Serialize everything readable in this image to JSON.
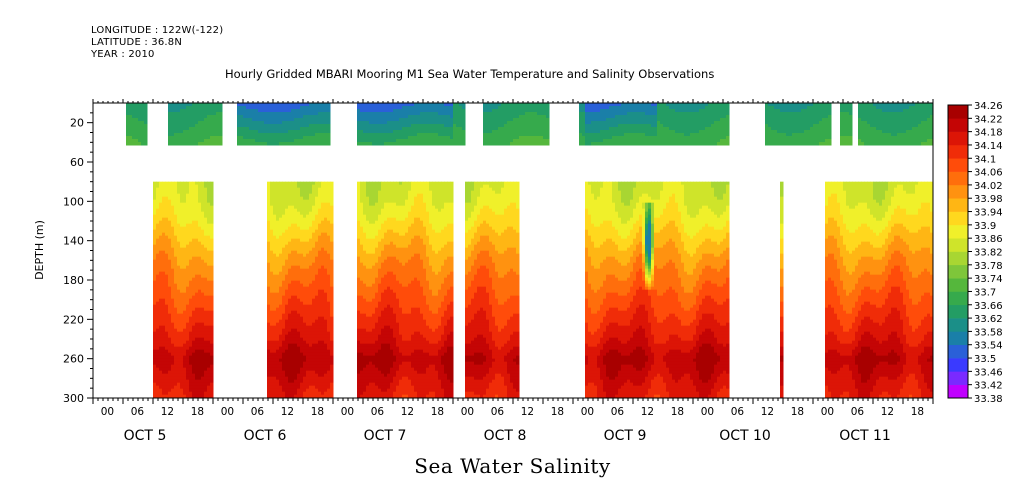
{
  "header": {
    "longitude": "LONGITUDE : 122W(-122)",
    "latitude": "LATITUDE : 36.8N",
    "year": "YEAR : 2010"
  },
  "chart_data": {
    "type": "heatmap",
    "title": "Hourly Gridded MBARI Mooring M1 Sea Water Temperature and Salinity Observations",
    "variable_label": "Sea Water Salinity",
    "ylabel": "DEPTH (m)",
    "xlabel": "",
    "ylim": [
      300,
      0
    ],
    "y_ticks": [
      20,
      60,
      100,
      140,
      180,
      220,
      260,
      300
    ],
    "x_hour_ticks": [
      "00",
      "06",
      "12",
      "18",
      "00",
      "06",
      "12",
      "18",
      "00",
      "06",
      "12",
      "18",
      "00",
      "06",
      "12",
      "18",
      "00",
      "06",
      "12",
      "18",
      "00",
      "06",
      "12",
      "18",
      "00",
      "06",
      "12",
      "18"
    ],
    "x_day_labels": [
      "OCT  5",
      "OCT  6",
      "OCT  7",
      "OCT  8",
      "OCT  9",
      "OCT 10",
      "OCT 11"
    ],
    "x_range_days": [
      0,
      7
    ],
    "colorbar": {
      "levels": [
        33.38,
        33.42,
        33.46,
        33.5,
        33.54,
        33.58,
        33.62,
        33.66,
        33.7,
        33.74,
        33.78,
        33.82,
        33.86,
        33.9,
        33.94,
        33.98,
        34.02,
        34.06,
        34.1,
        34.14,
        34.18,
        34.22,
        34.26
      ],
      "labels": [
        "34.26",
        "34.22",
        "34.18",
        "34.14",
        "34.1",
        "34.06",
        "34.02",
        "33.98",
        "33.94",
        "33.9",
        "33.86",
        "33.82",
        "33.78",
        "33.74",
        "33.7",
        "33.66",
        "33.62",
        "33.58",
        "33.54",
        "33.5",
        "33.46",
        "33.42",
        "33.38"
      ],
      "colors": [
        "#c000ff",
        "#7a2aff",
        "#3a3aff",
        "#2a60d8",
        "#1a7fa8",
        "#1b8f88",
        "#239d64",
        "#36aa4c",
        "#55b73c",
        "#7ec63a",
        "#a8d632",
        "#cfe42a",
        "#f0f02a",
        "#ffd81e",
        "#ffb614",
        "#ff9210",
        "#ff6e0c",
        "#ff4c0a",
        "#f02c08",
        "#dc1506",
        "#c40505",
        "#a80000"
      ]
    },
    "depth_profile": {
      "depths": [
        0,
        10,
        20,
        30,
        80,
        100,
        120,
        140,
        160,
        180,
        200,
        220,
        240,
        260,
        280,
        300
      ],
      "salinity": [
        33.6,
        33.62,
        33.66,
        33.7,
        33.84,
        33.86,
        33.9,
        33.95,
        34.0,
        34.04,
        34.08,
        34.12,
        34.16,
        34.22,
        34.18,
        34.14
      ]
    },
    "upper_series": {
      "depth_range": [
        10,
        40
      ],
      "valid_day_ranges": [
        [
          0.27,
          0.45
        ],
        [
          0.63,
          1.08
        ],
        [
          1.2,
          1.98
        ],
        [
          2.2,
          3.1
        ],
        [
          3.25,
          3.8
        ],
        [
          4.05,
          5.3
        ],
        [
          5.6,
          6.15
        ],
        [
          6.22,
          6.32
        ],
        [
          6.38,
          7.0
        ]
      ],
      "fresh_spells": [
        [
          1.2,
          3.0
        ],
        [
          4.1,
          4.7
        ]
      ]
    },
    "lower_series": {
      "depth_range": [
        80,
        300
      ],
      "valid_day_ranges": [
        [
          0.5,
          1.0
        ],
        [
          1.45,
          2.0
        ],
        [
          2.2,
          3.0
        ],
        [
          3.1,
          3.55
        ],
        [
          4.1,
          5.3
        ],
        [
          5.73,
          5.76
        ],
        [
          6.1,
          7.0
        ]
      ]
    },
    "anomaly": {
      "day": 4.63,
      "depth_top": 100,
      "depth_bottom": 190,
      "min_salinity": 33.56
    }
  }
}
